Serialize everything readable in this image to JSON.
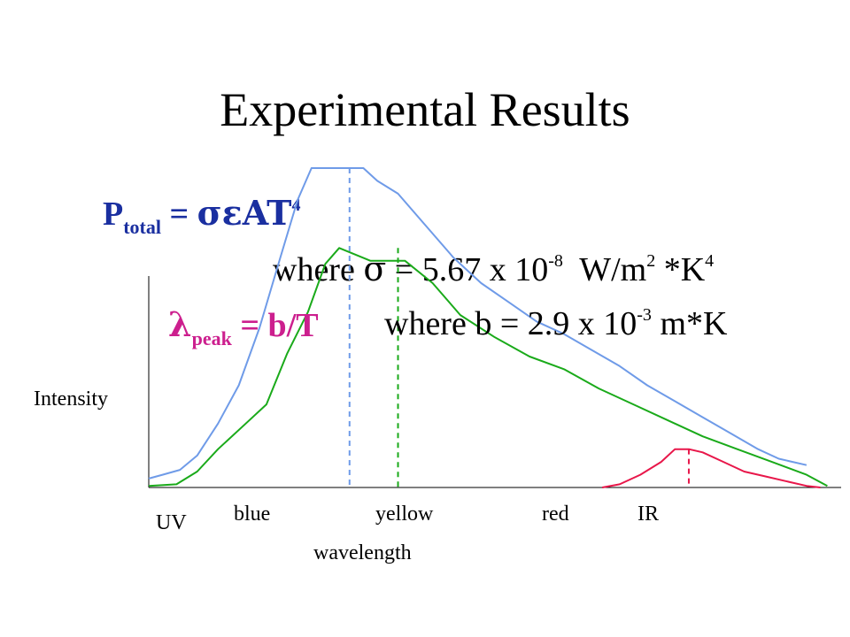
{
  "slide": {
    "title": "Experimental Results"
  },
  "stefan": {
    "p": "P",
    "p_sub": "total",
    "eq": "=",
    "symbols": "σεAT",
    "exp": "4",
    "where_prefix": "where",
    "sigma": "σ",
    "where_eq": "=",
    "const": "5.67 x 10",
    "const_exp": "-8",
    "units_a": "W/m",
    "units_a_exp": "2",
    "units_b": "*K",
    "units_b_exp": "4"
  },
  "wien": {
    "lambda": "λ",
    "sub": "peak",
    "rhs": "= b/T",
    "where_text": "where b = 2.9 x 10",
    "where_exp": "-3",
    "units": "m*K"
  },
  "colors": {
    "blue_curve": "#6f9be8",
    "green_curve": "#1aaa1a",
    "red_curve": "#e8174a",
    "wien_text": "#cc1f8e",
    "stefan_text": "#1a2fa0"
  },
  "chart_data": {
    "type": "line",
    "ylabel": "Intensity",
    "xlabel": "wavelength",
    "x_tick_labels": [
      "UV",
      "blue",
      "yellow",
      "red",
      "IR"
    ],
    "grid": false,
    "series": [
      {
        "color": "#6f9be8",
        "values": [
          [
            0.0,
            0.028
          ],
          [
            0.02,
            0.04
          ],
          [
            0.045,
            0.055
          ],
          [
            0.07,
            0.1
          ],
          [
            0.1,
            0.2
          ],
          [
            0.13,
            0.32
          ],
          [
            0.16,
            0.5
          ],
          [
            0.19,
            0.72
          ],
          [
            0.215,
            0.9
          ],
          [
            0.235,
            1.0
          ],
          [
            0.31,
            1.0
          ],
          [
            0.33,
            0.96
          ],
          [
            0.36,
            0.92
          ],
          [
            0.4,
            0.82
          ],
          [
            0.44,
            0.72
          ],
          [
            0.48,
            0.64
          ],
          [
            0.52,
            0.58
          ],
          [
            0.56,
            0.52
          ],
          [
            0.6,
            0.48
          ],
          [
            0.64,
            0.43
          ],
          [
            0.68,
            0.38
          ],
          [
            0.72,
            0.32
          ],
          [
            0.76,
            0.27
          ],
          [
            0.8,
            0.22
          ],
          [
            0.84,
            0.17
          ],
          [
            0.88,
            0.12
          ],
          [
            0.91,
            0.09
          ],
          [
            0.95,
            0.07
          ]
        ],
        "peak_marker_x": 0.29
      },
      {
        "color": "#1aaa1a",
        "values": [
          [
            0.0,
            0.005
          ],
          [
            0.04,
            0.01
          ],
          [
            0.07,
            0.05
          ],
          [
            0.1,
            0.12
          ],
          [
            0.14,
            0.2
          ],
          [
            0.17,
            0.26
          ],
          [
            0.2,
            0.42
          ],
          [
            0.23,
            0.55
          ],
          [
            0.255,
            0.7
          ],
          [
            0.275,
            0.75
          ],
          [
            0.32,
            0.71
          ],
          [
            0.37,
            0.71
          ],
          [
            0.41,
            0.64
          ],
          [
            0.45,
            0.54
          ],
          [
            0.5,
            0.47
          ],
          [
            0.55,
            0.41
          ],
          [
            0.6,
            0.37
          ],
          [
            0.65,
            0.31
          ],
          [
            0.7,
            0.26
          ],
          [
            0.75,
            0.21
          ],
          [
            0.8,
            0.16
          ],
          [
            0.85,
            0.12
          ],
          [
            0.9,
            0.08
          ],
          [
            0.95,
            0.04
          ],
          [
            0.98,
            0.005
          ]
        ],
        "peak_marker_x": 0.36
      },
      {
        "color": "#e8174a",
        "values": [
          [
            0.655,
            0.0
          ],
          [
            0.68,
            0.01
          ],
          [
            0.71,
            0.04
          ],
          [
            0.74,
            0.08
          ],
          [
            0.76,
            0.12
          ],
          [
            0.78,
            0.12
          ],
          [
            0.8,
            0.11
          ],
          [
            0.83,
            0.08
          ],
          [
            0.86,
            0.05
          ],
          [
            0.89,
            0.035
          ],
          [
            0.92,
            0.02
          ],
          [
            0.95,
            0.005
          ],
          [
            0.97,
            0.0
          ]
        ],
        "peak_marker_x": 0.78
      }
    ]
  }
}
